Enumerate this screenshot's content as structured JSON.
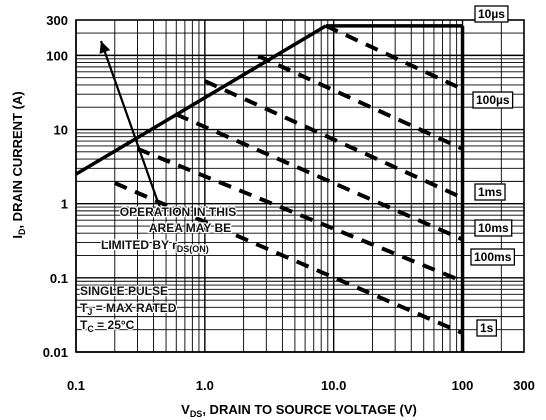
{
  "chart_data": {
    "type": "line",
    "title": "",
    "xlabel": {
      "main": "V",
      "sub": "DS",
      "rest": ", DRAIN TO SOURCE VOLTAGE (V)"
    },
    "ylabel": {
      "main": "I",
      "sub": "D",
      "rest": ", DRAIN CURRENT (A)"
    },
    "x_scale": "log",
    "y_scale": "log",
    "xlim": [
      0.1,
      300
    ],
    "ylim": [
      0.01,
      300
    ],
    "grid": true,
    "x_ticks": [
      {
        "value": 0.1,
        "label": "0.1"
      },
      {
        "value": 1,
        "label": "1.0"
      },
      {
        "value": 10,
        "label": "10.0"
      },
      {
        "value": 100,
        "label": "100"
      },
      {
        "value": 300,
        "label": "300"
      }
    ],
    "y_ticks": [
      {
        "value": 300,
        "label": "300"
      },
      {
        "value": 100,
        "label": "100"
      },
      {
        "value": 10,
        "label": "10"
      },
      {
        "value": 1,
        "label": "1"
      },
      {
        "value": 0.1,
        "label": "0.1"
      },
      {
        "value": 0.01,
        "label": "0.01"
      }
    ],
    "current_limit_a": 250,
    "voltage_limit_v": 100,
    "rds_on_limit": {
      "x": [
        0.1,
        8.7
      ],
      "y": [
        2.5,
        250
      ]
    },
    "series": [
      {
        "name": "10µs",
        "x": [
          8.7,
          100
        ],
        "y": [
          250,
          35
        ]
      },
      {
        "name": "100µs",
        "x": [
          2.6,
          100
        ],
        "y": [
          98,
          5.5
        ]
      },
      {
        "name": "1ms",
        "x": [
          1.0,
          100
        ],
        "y": [
          45,
          1.2
        ]
      },
      {
        "name": "10ms",
        "x": [
          0.6,
          100
        ],
        "y": [
          16,
          0.33
        ]
      },
      {
        "name": "100ms",
        "x": [
          0.3,
          100
        ],
        "y": [
          5.5,
          0.09
        ]
      },
      {
        "name": "1s",
        "x": [
          0.2,
          100
        ],
        "y": [
          1.9,
          0.018
        ]
      }
    ],
    "annotations": {
      "operation_line1": "OPERATION IN THIS",
      "operation_line2": "AREA MAY BE",
      "operation_line3_main": "LIMITED BY r",
      "operation_line3_sub": "DS(ON)",
      "pulse_line1": "SINGLE PULSE",
      "pulse_line2_main": "T",
      "pulse_line2_sub": "J",
      "pulse_line2_rest": " = MAX RATED",
      "pulse_line3_main": "T",
      "pulse_line3_sub": "C",
      "pulse_line3_rest": " = 25°C"
    },
    "colors": {
      "line": "#000000",
      "grid": "#000000",
      "background": "#ffffff"
    }
  }
}
